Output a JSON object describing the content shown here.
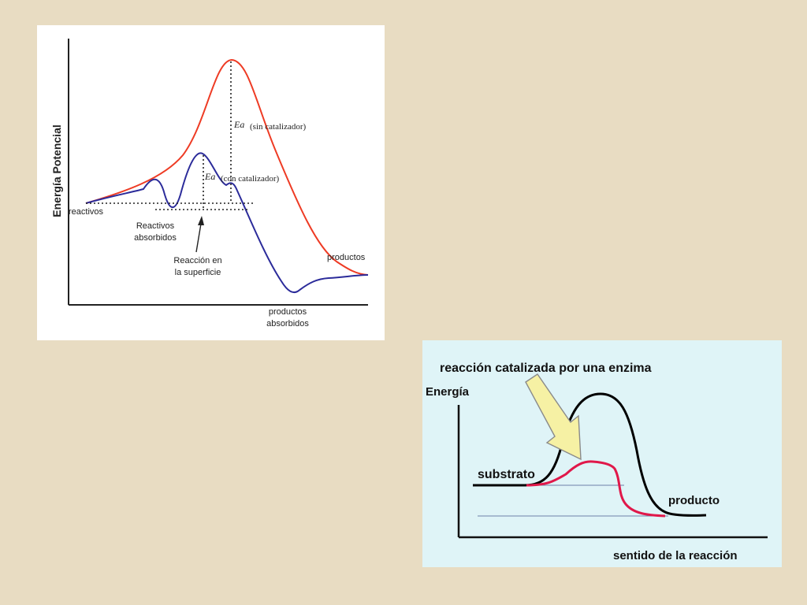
{
  "diagram1": {
    "y_axis_label": "Energía Potencial",
    "reactants_label": "reactivos",
    "adsorbed_reactants_label": [
      "Reactivos",
      "absorbidos"
    ],
    "surface_reaction_label": [
      "Reacción en",
      "la superficie"
    ],
    "products_label": "productos",
    "adsorbed_products_label": [
      "productos",
      "absorbidos"
    ],
    "ea_symbol": "Ea",
    "ea_uncatalyzed_label": "(sin catalizador)",
    "ea_catalyzed_label": "(con catalizador)",
    "colors": {
      "uncatalyzed": "#ee3b24",
      "catalyzed": "#2b2b9a",
      "axis": "#222222"
    }
  },
  "diagram2": {
    "title": "reacción catalizada por una enzima",
    "y_axis_label": "Energía",
    "x_axis_label": "sentido de la reacción",
    "substrate_label": "substrato",
    "product_label": "producto",
    "colors": {
      "uncatalyzed": "#000000",
      "catalyzed": "#e0184a",
      "arrow_fill": "#f6f1a4",
      "reference_lines": "#6d7fa8",
      "background": "#dff4f7"
    }
  }
}
